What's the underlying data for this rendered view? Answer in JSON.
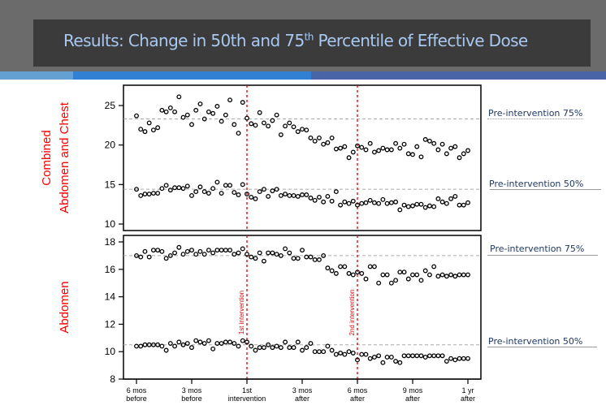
{
  "header": {
    "title_pre": "Results: Change in 50th and 75",
    "title_sup": "th",
    "title_post": " Percentile  of Effective Dose"
  },
  "colors": {
    "banner_bg": "#6b6b6b",
    "title_box": "#3b3b3b",
    "title_text": "#a9c8f0",
    "strip": [
      "#64a0d2",
      "#3180d4",
      "#4a64a8"
    ],
    "intervention": "#e00000",
    "panel_label": "#ff0000",
    "ref_line": "#aaaaaa"
  },
  "annotations": {
    "top_75": "Pre-intervention 75%",
    "top_50": "Pre-intervention 50%",
    "bottom_75": "Pre-intervention 75%",
    "bottom_50": "Pre-intervention 50%"
  },
  "chart_data": [
    {
      "type": "scatter",
      "title": "",
      "ylabel": "Combined Abdomen and Chest",
      "ylabel_lines": [
        "Combined",
        "Abdomen and Chest"
      ],
      "xlabel": "",
      "ylim": [
        9.5,
        27
      ],
      "yticks": [
        10,
        15,
        20,
        25
      ],
      "x_unit": "weeks from start",
      "xlim": [
        -0.6,
        78.6
      ],
      "intervention_lines": [
        {
          "x": 26,
          "label": "1st intervention"
        },
        {
          "x": 52,
          "label": "2nd intervention"
        }
      ],
      "reference_lines": [
        {
          "name": "Pre-intervention 75%",
          "y": 23.3
        },
        {
          "name": "Pre-intervention 50%",
          "y": 14.4
        }
      ],
      "series": [
        {
          "name": "75th percentile",
          "values": [
            23.7,
            22.0,
            21.7,
            22.8,
            21.9,
            22.2,
            24.4,
            24.2,
            24.7,
            24.2,
            26.1,
            23.5,
            23.8,
            22.6,
            24.4,
            25.2,
            23.3,
            24.2,
            24.0,
            24.9,
            23.0,
            23.8,
            25.7,
            22.6,
            21.5,
            25.4,
            23.4,
            22.7,
            22.5,
            24.1,
            22.8,
            22.4,
            23.1,
            23.8,
            21.3,
            22.4,
            22.8,
            22.3,
            21.7,
            22.0,
            21.9,
            20.9,
            20.5,
            20.9,
            20.1,
            20.3,
            20.9,
            19.5,
            19.6,
            19.8,
            18.4,
            19.1,
            19.9,
            19.7,
            19.4,
            20.2,
            19.1,
            19.3,
            19.6,
            19.4,
            19.4,
            20.2,
            19.6,
            20.1,
            18.9,
            18.8,
            19.8,
            18.5,
            20.7,
            20.5,
            20.2,
            19.4,
            20.1,
            18.9,
            19.6,
            19.8,
            18.4,
            18.9,
            19.3
          ]
        },
        {
          "name": "50th percentile",
          "values": [
            14.4,
            13.6,
            13.8,
            13.8,
            13.9,
            13.9,
            14.5,
            14.9,
            14.3,
            14.6,
            14.6,
            14.5,
            14.8,
            13.6,
            14.1,
            14.7,
            14.1,
            13.9,
            14.5,
            15.3,
            13.9,
            14.9,
            14.9,
            14.0,
            13.7,
            15.0,
            13.8,
            13.4,
            13.2,
            14.1,
            14.4,
            13.5,
            14.2,
            14.4,
            13.6,
            13.8,
            13.6,
            13.6,
            13.5,
            13.7,
            13.7,
            13.3,
            13.0,
            13.4,
            12.8,
            13.5,
            12.9,
            14.1,
            12.4,
            12.8,
            12.6,
            12.9,
            12.4,
            12.6,
            12.7,
            13.0,
            12.7,
            12.6,
            13.1,
            12.6,
            12.7,
            12.8,
            11.8,
            12.4,
            12.2,
            12.3,
            12.5,
            12.5,
            12.1,
            12.3,
            12.2,
            13.2,
            12.8,
            12.6,
            13.2,
            13.5,
            12.4,
            12.4,
            12.7
          ]
        }
      ]
    },
    {
      "type": "scatter",
      "title": "",
      "ylabel": "Abdomen",
      "ylabel_lines": [
        "Abdomen"
      ],
      "xlabel": "",
      "ylim": [
        8,
        18.5
      ],
      "yticks": [
        8,
        10,
        12,
        14,
        16,
        18
      ],
      "x_unit": "weeks from start",
      "xlim": [
        -0.6,
        78.6
      ],
      "xticks": [
        {
          "x": 0,
          "label": [
            "6 mos",
            "before"
          ]
        },
        {
          "x": 13,
          "label": [
            "3 mos",
            "before"
          ]
        },
        {
          "x": 26,
          "label": [
            "1st",
            "intervention"
          ]
        },
        {
          "x": 39,
          "label": [
            "3 mos",
            "after"
          ]
        },
        {
          "x": 52,
          "label": [
            "6 mos",
            "after"
          ]
        },
        {
          "x": 65,
          "label": [
            "9 mos",
            "after"
          ]
        },
        {
          "x": 78,
          "label": [
            "1 yr",
            "after"
          ]
        }
      ],
      "intervention_lines": [
        {
          "x": 26,
          "label": "1st intervention"
        },
        {
          "x": 52,
          "label": "2nd intervention"
        }
      ],
      "reference_lines": [
        {
          "name": "Pre-intervention 75%",
          "y": 17.0
        },
        {
          "name": "Pre-intervention 50%",
          "y": 10.5
        }
      ],
      "series": [
        {
          "name": "75th percentile",
          "values": [
            17.0,
            16.9,
            17.3,
            16.9,
            17.4,
            17.4,
            17.3,
            16.8,
            17.0,
            17.2,
            17.6,
            17.1,
            17.3,
            17.4,
            17.1,
            17.3,
            17.1,
            17.4,
            17.2,
            17.4,
            17.4,
            17.4,
            17.4,
            17.1,
            17.2,
            17.5,
            17.1,
            16.9,
            16.8,
            17.2,
            16.6,
            17.2,
            17.2,
            17.1,
            17.0,
            17.5,
            17.2,
            16.8,
            16.8,
            17.4,
            16.9,
            16.9,
            16.7,
            16.7,
            17.0,
            16.1,
            15.9,
            15.7,
            16.2,
            16.2,
            15.7,
            15.6,
            15.8,
            15.7,
            15.3,
            16.2,
            16.2,
            15.0,
            15.6,
            15.6,
            15.0,
            15.2,
            15.8,
            15.8,
            15.3,
            15.6,
            15.6,
            15.2,
            15.9,
            15.6,
            16.2,
            15.5,
            15.6,
            15.5,
            15.6,
            15.5,
            15.6,
            15.6,
            15.6
          ]
        },
        {
          "name": "50th percentile",
          "values": [
            10.4,
            10.4,
            10.5,
            10.5,
            10.5,
            10.5,
            10.4,
            10.1,
            10.6,
            10.4,
            10.7,
            10.5,
            10.6,
            10.3,
            10.8,
            10.7,
            10.6,
            10.8,
            10.2,
            10.6,
            10.6,
            10.7,
            10.7,
            10.6,
            10.4,
            10.8,
            10.7,
            10.4,
            10.1,
            10.3,
            10.3,
            10.5,
            10.3,
            10.4,
            10.3,
            10.7,
            10.3,
            10.3,
            10.7,
            10.1,
            10.3,
            10.6,
            10.0,
            10.0,
            10.0,
            10.4,
            10.1,
            9.8,
            9.9,
            9.8,
            10.0,
            9.9,
            9.4,
            9.8,
            9.8,
            9.5,
            9.6,
            9.7,
            9.2,
            9.6,
            9.6,
            9.3,
            9.2,
            9.7,
            9.7,
            9.7,
            9.7,
            9.7,
            9.6,
            9.7,
            9.7,
            9.7,
            9.7,
            9.3,
            9.5,
            9.4,
            9.5,
            9.5,
            9.5
          ]
        }
      ]
    }
  ]
}
